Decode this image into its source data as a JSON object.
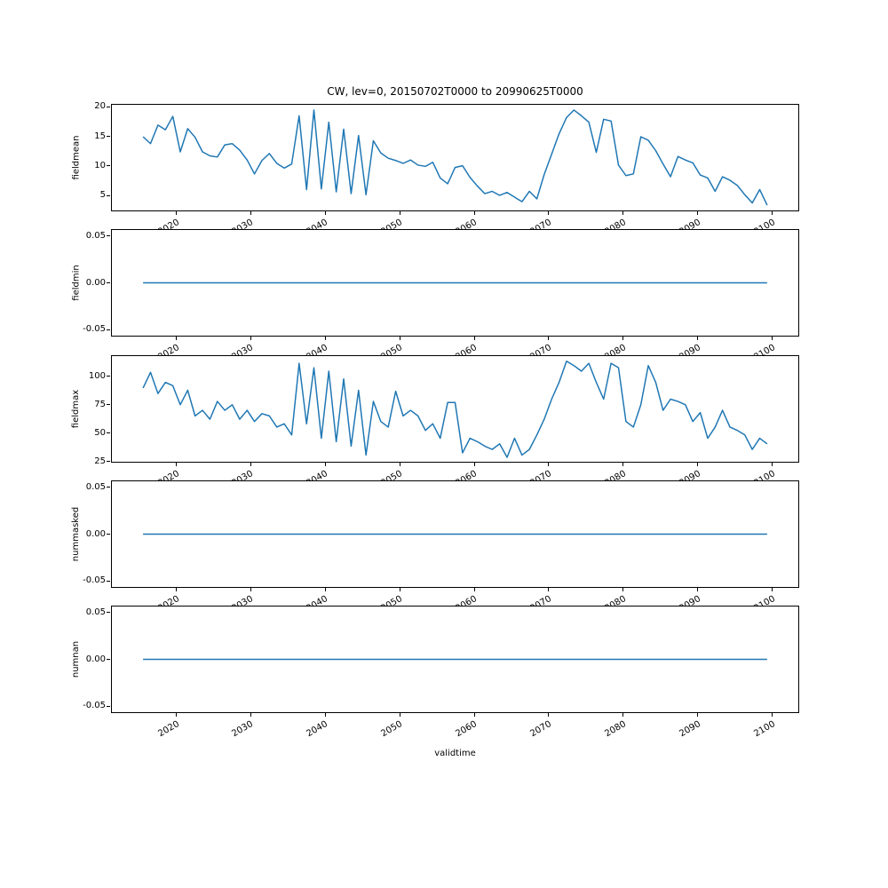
{
  "figure": {
    "title": "CW, lev=0, 20150702T0000 to 20990625T0000",
    "xlabel": "validtime",
    "line_color": "#1f77b4",
    "background": "#ffffff",
    "xlim": [
      2011.3,
      2103.7
    ],
    "x_ticks": [
      2020,
      2030,
      2040,
      2050,
      2060,
      2070,
      2080,
      2090,
      2100
    ],
    "x_tick_labels": [
      "2020",
      "2030",
      "2040",
      "2050",
      "2060",
      "2070",
      "2080",
      "2090",
      "2100"
    ]
  },
  "chart_data": [
    {
      "type": "line",
      "name": "fieldmean",
      "ylabel": "fieldmean",
      "x_start": 2015.5,
      "x_step": 1,
      "ylim": [
        2.3,
        20.5
      ],
      "yticks": [
        5,
        10,
        15,
        20
      ],
      "ytick_labels": [
        "5",
        "10",
        "15",
        "20"
      ],
      "values": [
        15.0,
        13.8,
        17.0,
        16.2,
        18.5,
        12.4,
        16.4,
        14.9,
        12.4,
        11.7,
        11.5,
        13.6,
        13.8,
        12.7,
        11.0,
        8.6,
        10.9,
        12.1,
        10.4,
        9.6,
        10.3,
        18.6,
        5.9,
        19.6,
        6.0,
        17.5,
        5.5,
        16.3,
        5.2,
        15.2,
        5.0,
        14.3,
        12.2,
        11.3,
        10.9,
        10.4,
        11.0,
        10.1,
        9.9,
        10.6,
        7.9,
        6.9,
        9.7,
        10.0,
        8.0,
        6.5,
        5.2,
        5.6,
        4.9,
        5.4,
        4.6,
        3.8,
        5.6,
        4.3,
        8.5,
        12.0,
        15.5,
        18.3,
        19.6,
        18.6,
        17.5,
        12.3,
        18.0,
        17.7,
        10.1,
        8.3,
        8.6,
        15.0,
        14.4,
        12.6,
        10.3,
        8.1,
        11.6,
        11.0,
        10.5,
        8.4,
        7.9,
        5.6,
        8.1,
        7.5,
        6.6,
        5.0,
        3.6,
        5.9,
        3.2
      ]
    },
    {
      "type": "line",
      "name": "fieldmin",
      "ylabel": "fieldmin",
      "x_start": 2015.5,
      "x_step": 1,
      "ylim": [
        -0.0575,
        0.0575
      ],
      "yticks": [
        -0.05,
        0,
        0.05
      ],
      "ytick_labels": [
        "-0.05",
        "0.00",
        "0.05"
      ],
      "constant": 0,
      "count": 85
    },
    {
      "type": "line",
      "name": "fieldmax",
      "ylabel": "fieldmax",
      "x_start": 2015.5,
      "x_step": 1,
      "ylim": [
        24,
        118.5
      ],
      "yticks": [
        25,
        50,
        75,
        100
      ],
      "ytick_labels": [
        "25",
        "50",
        "75",
        "100"
      ],
      "values": [
        90,
        104,
        85,
        95,
        92,
        75,
        88,
        65,
        70,
        62,
        78,
        70,
        75,
        62,
        70,
        60,
        67,
        65,
        55,
        58,
        48,
        112,
        58,
        108,
        45,
        105,
        42,
        98,
        38,
        88,
        30,
        78,
        60,
        55,
        87,
        65,
        70,
        65,
        52,
        58,
        45,
        77,
        77,
        32,
        45,
        42,
        38,
        35,
        40,
        28,
        45,
        30,
        35,
        48,
        62,
        80,
        95,
        114,
        110,
        105,
        112,
        95,
        80,
        112,
        108,
        60,
        55,
        75,
        110,
        95,
        70,
        80,
        78,
        75,
        60,
        68,
        45,
        55,
        70,
        55,
        52,
        48,
        35,
        45,
        40
      ]
    },
    {
      "type": "line",
      "name": "nummasked",
      "ylabel": "nummasked",
      "x_start": 2015.5,
      "x_step": 1,
      "ylim": [
        -0.0575,
        0.0575
      ],
      "yticks": [
        -0.05,
        0,
        0.05
      ],
      "ytick_labels": [
        "-0.05",
        "0.00",
        "0.05"
      ],
      "constant": 0,
      "count": 85
    },
    {
      "type": "line",
      "name": "numnan",
      "ylabel": "numnan",
      "x_start": 2015.5,
      "x_step": 1,
      "ylim": [
        -0.0575,
        0.0575
      ],
      "yticks": [
        -0.05,
        0,
        0.05
      ],
      "ytick_labels": [
        "-0.05",
        "0.00",
        "0.05"
      ],
      "constant": 0,
      "count": 85
    }
  ]
}
